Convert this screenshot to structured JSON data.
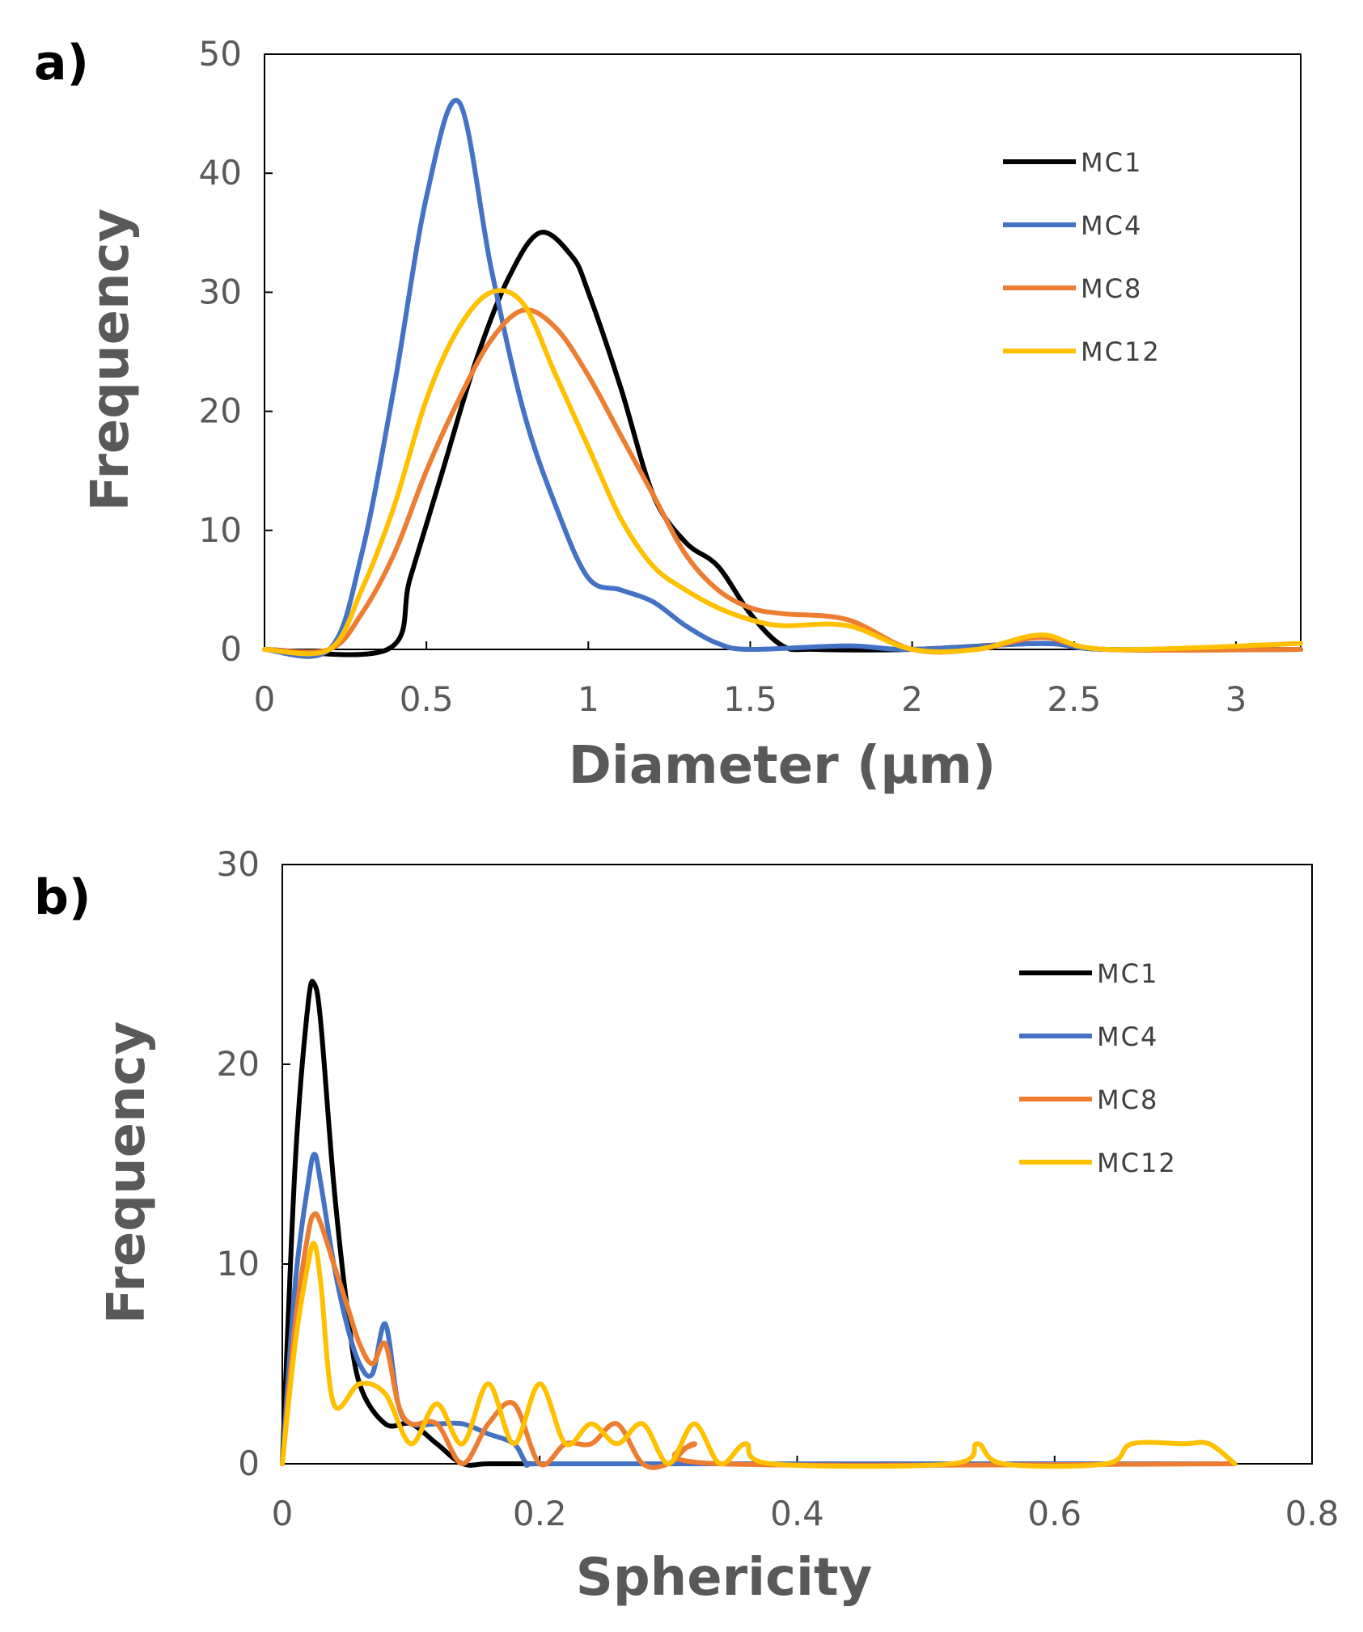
{
  "chart_data": [
    {
      "type": "line",
      "panel_label": "a)",
      "title": "",
      "xlabel": "Diameter (µm)",
      "ylabel": "Frequency",
      "xlim": [
        0,
        3.2
      ],
      "ylim": [
        0,
        50
      ],
      "xticks": [
        "0",
        "0.5",
        "1",
        "1.5",
        "2",
        "2.5",
        "3"
      ],
      "yticks": [
        "0",
        "10",
        "20",
        "30",
        "40",
        "50"
      ],
      "grid": false,
      "legend_position": "top-right",
      "series": [
        {
          "name": "MC1",
          "color": "#000000",
          "x": [
            0,
            0.38,
            0.45,
            0.55,
            0.65,
            0.75,
            0.85,
            0.95,
            1.0,
            1.1,
            1.2,
            1.3,
            1.4,
            1.5,
            1.6,
            1.7,
            2.0,
            2.4,
            2.6,
            3.2
          ],
          "y": [
            0,
            0,
            6,
            15,
            24,
            31,
            35,
            33,
            30,
            22,
            13,
            9,
            7,
            3,
            0.3,
            0,
            0,
            0.5,
            0,
            0
          ]
        },
        {
          "name": "MC4",
          "color": "#4472C4",
          "x": [
            0,
            0.2,
            0.3,
            0.4,
            0.5,
            0.6,
            0.7,
            0.8,
            0.9,
            1.0,
            1.1,
            1.2,
            1.3,
            1.4,
            1.5,
            1.8,
            2.0,
            2.4,
            2.6,
            3.2
          ],
          "y": [
            0,
            0,
            8,
            22,
            38,
            46,
            32,
            20,
            12,
            6,
            5,
            4,
            2,
            0.5,
            0,
            0.3,
            0,
            0.5,
            0,
            0
          ]
        },
        {
          "name": "MC8",
          "color": "#ED7D31",
          "x": [
            0,
            0.2,
            0.3,
            0.4,
            0.5,
            0.6,
            0.7,
            0.8,
            0.9,
            1.0,
            1.1,
            1.2,
            1.3,
            1.4,
            1.5,
            1.6,
            1.8,
            2.0,
            2.2,
            2.4,
            2.6,
            3.2
          ],
          "y": [
            0,
            0,
            3,
            8,
            15,
            21,
            26,
            28.5,
            27,
            23,
            18,
            13,
            8,
            5,
            3.5,
            3,
            2.5,
            0,
            0,
            1,
            0,
            0
          ]
        },
        {
          "name": "MC12",
          "color": "#FFC000",
          "x": [
            0,
            0.2,
            0.3,
            0.4,
            0.5,
            0.6,
            0.7,
            0.8,
            0.9,
            1.0,
            1.1,
            1.2,
            1.3,
            1.4,
            1.5,
            1.6,
            1.8,
            2.0,
            2.2,
            2.4,
            2.6,
            3.2
          ],
          "y": [
            0,
            0,
            5,
            12,
            21,
            27,
            30,
            29,
            23,
            17,
            11,
            7,
            5,
            3.5,
            2.5,
            2,
            2,
            0,
            0,
            1.2,
            0,
            0.5
          ]
        }
      ]
    },
    {
      "type": "line",
      "panel_label": "b)",
      "title": "",
      "xlabel": "Sphericity",
      "ylabel": "Frequency",
      "xlim": [
        0,
        0.8
      ],
      "ylim": [
        0,
        30
      ],
      "xticks": [
        "0",
        "0.2",
        "0.4",
        "0.6",
        "0.8"
      ],
      "yticks": [
        "0",
        "10",
        "20",
        "30"
      ],
      "grid": false,
      "legend_position": "top-right",
      "series": [
        {
          "name": "MC1",
          "color": "#000000",
          "x": [
            0,
            0.01,
            0.02,
            0.025,
            0.03,
            0.04,
            0.05,
            0.06,
            0.08,
            0.1,
            0.12,
            0.14,
            0.16,
            0.2,
            0.3,
            0.74
          ],
          "y": [
            0,
            15,
            23,
            24,
            22,
            14,
            8,
            4,
            2,
            2,
            1,
            0,
            0,
            0,
            0,
            0
          ]
        },
        {
          "name": "MC4",
          "color": "#4472C4",
          "x": [
            0,
            0.01,
            0.02,
            0.025,
            0.03,
            0.04,
            0.05,
            0.06,
            0.07,
            0.08,
            0.09,
            0.1,
            0.12,
            0.14,
            0.16,
            0.18,
            0.19,
            0.2,
            0.3,
            0.74
          ],
          "y": [
            0,
            9,
            14,
            15.5,
            14,
            10,
            7,
            5,
            4.5,
            7,
            3,
            2,
            2,
            2,
            1.5,
            1,
            0,
            0,
            0,
            0
          ]
        },
        {
          "name": "MC8",
          "color": "#ED7D31",
          "x": [
            0,
            0.01,
            0.02,
            0.025,
            0.03,
            0.04,
            0.05,
            0.06,
            0.07,
            0.08,
            0.09,
            0.1,
            0.12,
            0.14,
            0.16,
            0.18,
            0.2,
            0.22,
            0.24,
            0.26,
            0.28,
            0.3,
            0.32,
            0.34,
            0.74
          ],
          "y": [
            0,
            7,
            11.5,
            12.5,
            12,
            10,
            8,
            6,
            5,
            6,
            3,
            2,
            2,
            0,
            2,
            3,
            0,
            1,
            1,
            2,
            0,
            0,
            1,
            0,
            0
          ]
        },
        {
          "name": "MC12",
          "color": "#FFC000",
          "x": [
            0,
            0.01,
            0.02,
            0.025,
            0.03,
            0.04,
            0.06,
            0.08,
            0.1,
            0.12,
            0.14,
            0.16,
            0.18,
            0.2,
            0.22,
            0.24,
            0.26,
            0.28,
            0.3,
            0.32,
            0.34,
            0.36,
            0.38,
            0.52,
            0.54,
            0.56,
            0.64,
            0.66,
            0.7,
            0.72,
            0.74
          ],
          "y": [
            0,
            6,
            10,
            11,
            9,
            3,
            4,
            3.5,
            1,
            3,
            1,
            4,
            1,
            4,
            1,
            2,
            1,
            2,
            0,
            2,
            0,
            1,
            0,
            0,
            1,
            0,
            0,
            1,
            1,
            1,
            0
          ]
        }
      ]
    }
  ]
}
